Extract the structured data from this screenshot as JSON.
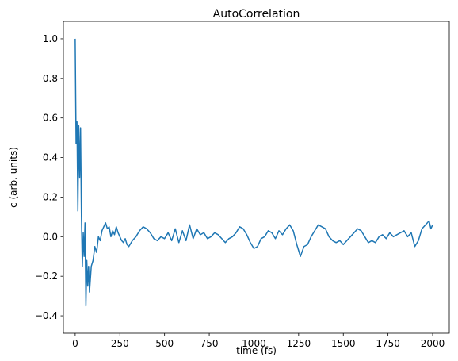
{
  "chart_data": {
    "type": "line",
    "title": "AutoCorrelation",
    "x_label": "time (fs)",
    "y_label": "c (arb. units)",
    "x": [
      0,
      5,
      10,
      15,
      20,
      25,
      30,
      35,
      40,
      45,
      50,
      55,
      60,
      65,
      70,
      75,
      80,
      90,
      100,
      110,
      120,
      130,
      140,
      150,
      160,
      170,
      180,
      190,
      200,
      210,
      220,
      230,
      240,
      250,
      260,
      270,
      280,
      290,
      300,
      320,
      340,
      360,
      380,
      400,
      420,
      440,
      460,
      480,
      500,
      520,
      540,
      560,
      580,
      600,
      620,
      640,
      660,
      680,
      700,
      720,
      740,
      760,
      780,
      800,
      820,
      840,
      860,
      880,
      900,
      920,
      940,
      960,
      980,
      1000,
      1020,
      1040,
      1060,
      1080,
      1100,
      1120,
      1140,
      1160,
      1180,
      1200,
      1220,
      1240,
      1250,
      1260,
      1280,
      1300,
      1320,
      1340,
      1360,
      1380,
      1400,
      1420,
      1440,
      1460,
      1480,
      1500,
      1520,
      1540,
      1560,
      1580,
      1600,
      1620,
      1640,
      1660,
      1680,
      1700,
      1720,
      1740,
      1760,
      1780,
      1800,
      1820,
      1840,
      1860,
      1880,
      1900,
      1920,
      1940,
      1960,
      1980,
      1990,
      2000
    ],
    "series": [
      {
        "name": "c",
        "color": "#1f77b4",
        "values": [
          1.0,
          0.47,
          0.58,
          0.13,
          0.56,
          0.3,
          0.55,
          0.1,
          -0.15,
          0.02,
          -0.1,
          0.07,
          -0.35,
          -0.12,
          -0.25,
          -0.15,
          -0.28,
          -0.15,
          -0.12,
          -0.05,
          -0.08,
          0.0,
          -0.02,
          0.03,
          0.05,
          0.07,
          0.04,
          0.05,
          0.0,
          0.03,
          0.01,
          0.05,
          0.02,
          0.0,
          -0.02,
          -0.03,
          -0.01,
          -0.04,
          -0.05,
          -0.02,
          0.0,
          0.03,
          0.05,
          0.04,
          0.02,
          -0.01,
          -0.02,
          0.0,
          -0.01,
          0.02,
          -0.02,
          0.04,
          -0.03,
          0.03,
          -0.02,
          0.06,
          -0.01,
          0.04,
          0.01,
          0.02,
          -0.01,
          0.0,
          0.02,
          0.01,
          -0.01,
          -0.03,
          -0.01,
          0.0,
          0.02,
          0.05,
          0.04,
          0.01,
          -0.03,
          -0.06,
          -0.05,
          -0.01,
          0.0,
          0.03,
          0.02,
          -0.01,
          0.03,
          0.01,
          0.04,
          0.06,
          0.03,
          -0.04,
          -0.07,
          -0.1,
          -0.05,
          -0.04,
          0.0,
          0.03,
          0.06,
          0.05,
          0.04,
          0.0,
          -0.02,
          -0.03,
          -0.02,
          -0.04,
          -0.02,
          0.0,
          0.02,
          0.04,
          0.03,
          0.0,
          -0.03,
          -0.02,
          -0.03,
          0.0,
          0.01,
          -0.01,
          0.02,
          0.0,
          0.01,
          0.02,
          0.03,
          0.0,
          0.02,
          -0.05,
          -0.02,
          0.04,
          0.06,
          0.08,
          0.04,
          0.06
        ]
      }
    ],
    "xlim": [
      -66,
      2093
    ],
    "ylim": [
      -0.488,
      1.088
    ],
    "xticks": [
      0,
      250,
      500,
      750,
      1000,
      1250,
      1500,
      1750,
      2000
    ],
    "yticks": [
      {
        "value": -0.4,
        "label": "−0.4"
      },
      {
        "value": -0.2,
        "label": "−0.2"
      },
      {
        "value": 0,
        "label": "0.0"
      },
      {
        "value": 0.2,
        "label": "0.2"
      },
      {
        "value": 0.4,
        "label": "0.4"
      },
      {
        "value": 0.6,
        "label": "0.6"
      },
      {
        "value": 0.8,
        "label": "0.8"
      },
      {
        "value": 1.0,
        "label": "1.0"
      }
    ],
    "grid": false
  }
}
